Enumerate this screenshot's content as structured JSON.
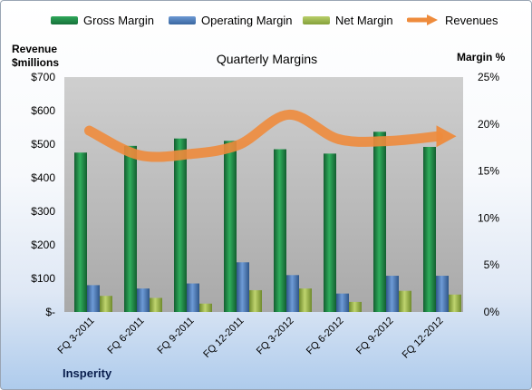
{
  "chart_data": {
    "type": "bar",
    "title": "Quarterly Margins",
    "categories": [
      "FQ 3-2011",
      "FQ 6-2011",
      "FQ 9-2011",
      "FQ 12-2011",
      "FQ 3-2012",
      "FQ 6-2012",
      "FQ 9-2012",
      "FQ 12-2012"
    ],
    "series": [
      {
        "name": "Gross Margin",
        "axis": "left",
        "color": "#1e8a46",
        "values": [
          475,
          495,
          517,
          510,
          485,
          472,
          537,
          492
        ]
      },
      {
        "name": "Operating Margin",
        "axis": "left",
        "color": "#4f7fbf",
        "values": [
          80,
          70,
          85,
          148,
          110,
          55,
          108,
          108
        ]
      },
      {
        "name": "Net Margin",
        "axis": "left",
        "color": "#9fb84f",
        "values": [
          48,
          42,
          25,
          65,
          70,
          30,
          63,
          52
        ]
      },
      {
        "name": "Revenues",
        "type": "line",
        "axis": "right",
        "color": "#ee8b3c",
        "values": [
          19.3,
          16.7,
          16.8,
          17.8,
          21.0,
          18.4,
          18.2,
          18.7
        ]
      }
    ],
    "ylabel_left": "Revenue $millions",
    "ylabel_right": "Margin %",
    "ylim_left": [
      0,
      700
    ],
    "yticks_left": [
      "$-",
      "$100",
      "$200",
      "$300",
      "$400",
      "$500",
      "$600",
      "$700"
    ],
    "ylim_right": [
      0,
      25
    ],
    "yticks_right": [
      "0%",
      "5%",
      "10%",
      "15%",
      "20%",
      "25%"
    ],
    "grid": false,
    "legend": "top",
    "footer": "Insperity"
  }
}
